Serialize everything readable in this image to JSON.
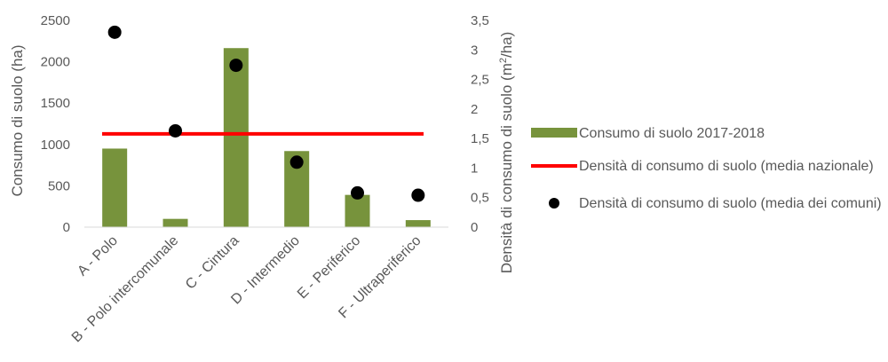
{
  "chart_data": {
    "type": "bar",
    "categories": [
      "A - Polo",
      "B - Polo intercomunale",
      "C - Cintura",
      "D - Intermedio",
      "E - Periferico",
      "F - Ultraperiferico"
    ],
    "series": [
      {
        "name": "Consumo di suolo 2017-2018",
        "type": "bar",
        "axis": "left",
        "color": "#77933C",
        "values": [
          950,
          100,
          2165,
          920,
          390,
          85
        ]
      },
      {
        "name": "Densità di consumo di suolo (media nazionale)",
        "type": "line",
        "axis": "right",
        "color": "#FF0000",
        "values": [
          1.58,
          1.58,
          1.58,
          1.58,
          1.58,
          1.58
        ]
      },
      {
        "name": "Densità di consumo di suolo (media dei comuni)",
        "type": "scatter",
        "axis": "right",
        "color": "#000000",
        "values": [
          3.3,
          1.63,
          2.74,
          1.1,
          0.58,
          0.54
        ]
      }
    ],
    "ylabel": "Consumo di suolo (ha)",
    "ylim": [
      0,
      2500
    ],
    "yticks": [
      "0",
      "500",
      "1000",
      "1500",
      "2000",
      "2500"
    ],
    "y2label_prefix": "Densità di consumo di suolo  (m",
    "y2label_sup": "2",
    "y2label_suffix": "/ha)",
    "y2lim": [
      0,
      3.5
    ],
    "y2ticks": [
      "0",
      "0,5",
      "1",
      "1,5",
      "2",
      "2,5",
      "3",
      "3,5"
    ],
    "grid": false,
    "legend_position": "right"
  }
}
